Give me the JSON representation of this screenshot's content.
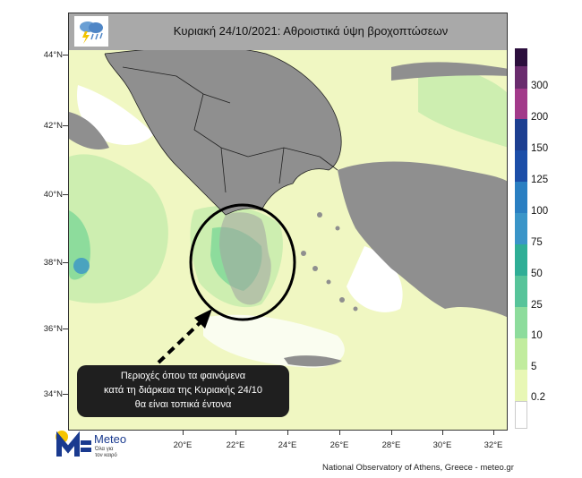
{
  "title": "Κυριακή 24/10/2021: Αθροιστικά  ύψη βροχοπτώσεων",
  "icons": {
    "weather": "rain-cloud-lightning-icon",
    "logo": "meteo-logo-icon"
  },
  "axes": {
    "lat_labels": [
      "44°N",
      "42°N",
      "40°N",
      "38°N",
      "36°N",
      "34°N"
    ],
    "lon_labels": [
      "20°E",
      "22°E",
      "24°E",
      "26°E",
      "28°E",
      "30°E",
      "32°E"
    ]
  },
  "legend": {
    "labels": [
      "300",
      "200",
      "150",
      "125",
      "100",
      "75",
      "50",
      "25",
      "10",
      "5",
      "0.2"
    ],
    "colors": [
      "#2c0f3d",
      "#6a2c6e",
      "#a23a8a",
      "#1d3f91",
      "#1c4ea8",
      "#2a7fc2",
      "#3a95c8",
      "#2fae96",
      "#57c49a",
      "#8ddc9c",
      "#c1ec9e",
      "#e8f7b5",
      "#ffffff"
    ]
  },
  "callout": {
    "line1": "Περιοχές όπου τα φαινόμενα",
    "line2": "κατά τη διάρκεια της Κυριακής 24/10",
    "line3": "θα είναι τοπικά έντονα"
  },
  "logo": {
    "name": "Meteo",
    "tag1": "Όλα για",
    "tag2": "τον καιρό"
  },
  "footer": "National Observatory of Athens, Greece - meteo.gr",
  "map_colors": {
    "sea_rain": "#f0f7c2",
    "land": "#8f8f8f",
    "no_rain": "#ffffff"
  }
}
